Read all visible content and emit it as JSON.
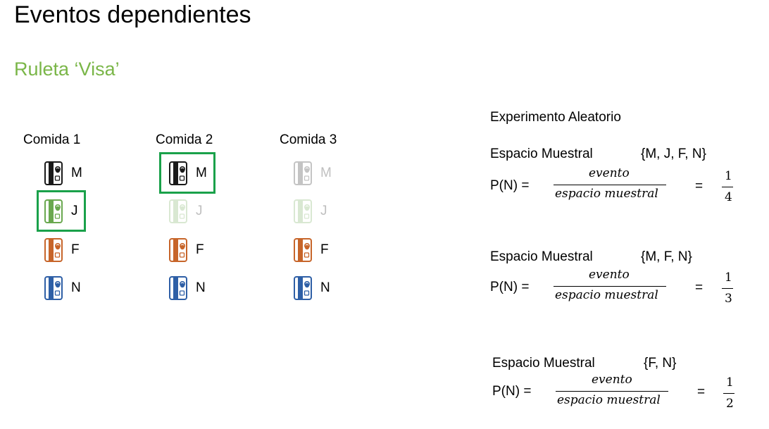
{
  "title": "Eventos dependientes",
  "subtitle": "Ruleta ‘Visa’",
  "columns": [
    {
      "header": "Comida 1"
    },
    {
      "header": "Comida 2"
    },
    {
      "header": "Comida 3"
    }
  ],
  "cards": {
    "col1": [
      "M",
      "J",
      "F",
      "N"
    ],
    "col2": [
      "M",
      "J",
      "F",
      "N"
    ],
    "col3": [
      "M",
      "J",
      "F",
      "N"
    ]
  },
  "card_colors": {
    "M": "#1a1a1a",
    "J": "#6aa84f",
    "F": "#c7652a",
    "N": "#2e5fa6",
    "selection": "#1aa14a"
  },
  "icons": {
    "card": "credit-card-icon"
  },
  "selected": {
    "col1": "J",
    "col2": "M"
  },
  "experiment": {
    "title": "Experimento Aleatorio",
    "blocks": [
      {
        "label": "Espacio Muestral",
        "set": "{M, J, F, N}",
        "prob_label": "P(N) =",
        "numerator": "evento",
        "denominator": "espacio muestral",
        "equals": "=",
        "result_num": "1",
        "result_den": "4"
      },
      {
        "label": "Espacio Muestral",
        "set": "{M, F, N}",
        "prob_label": "P(N) =",
        "numerator": "evento",
        "denominator": "espacio muestral",
        "equals": "=",
        "result_num": "1",
        "result_den": "3"
      },
      {
        "label": "Espacio Muestral",
        "set": "{F, N}",
        "prob_label": "P(N) =",
        "numerator": "evento",
        "denominator": "espacio muestral",
        "equals": "=",
        "result_num": "1",
        "result_den": "2"
      }
    ]
  }
}
